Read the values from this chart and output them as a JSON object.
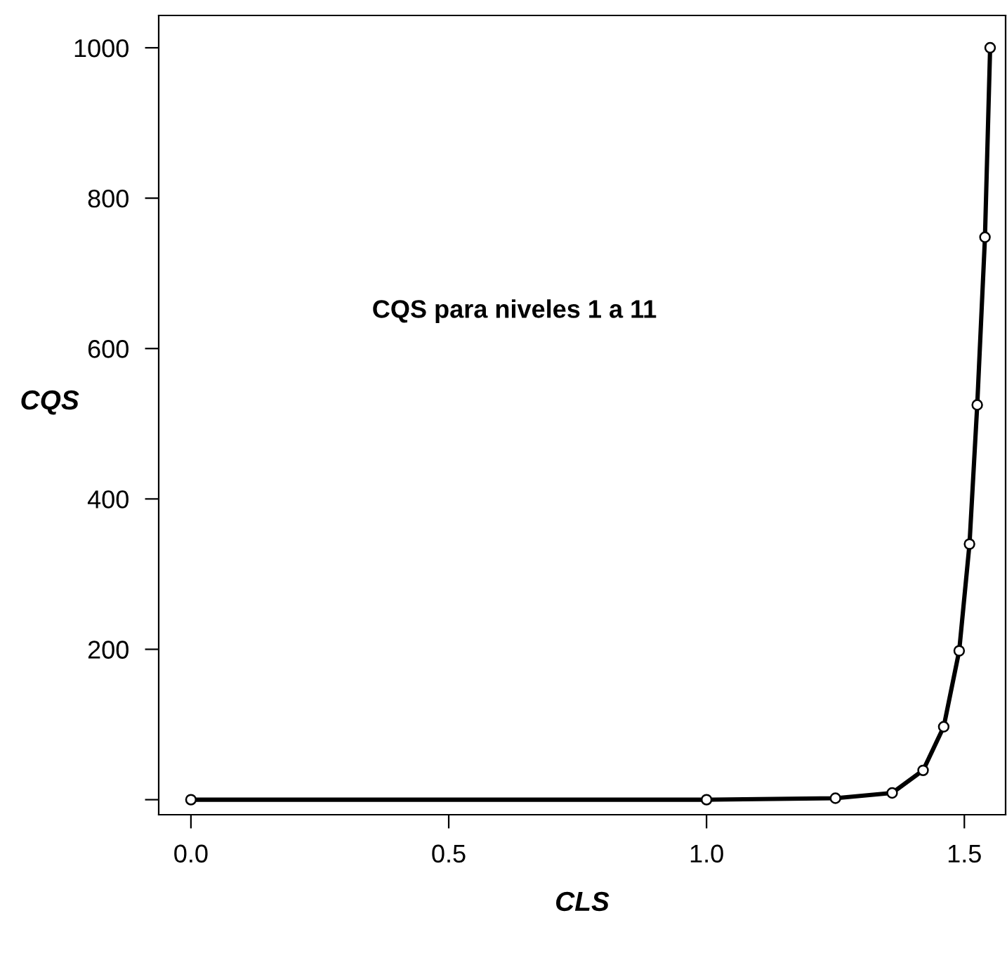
{
  "chart_data": {
    "type": "line",
    "xlabel": "CLS",
    "ylabel": "CQS",
    "annotations": [
      "CQS para niveles 1 a 11"
    ],
    "x": [
      0,
      1.0,
      1.25,
      1.36,
      1.42,
      1.46,
      1.49,
      1.51,
      1.525,
      1.54,
      1.55
    ],
    "series": [
      {
        "color": "#000000",
        "values": [
          0,
          0,
          2,
          9,
          39,
          97,
          198,
          340,
          525,
          748,
          1000
        ]
      }
    ],
    "xlim": [
      -0.0625,
      1.58
    ],
    "ylim": [
      -20,
      1043
    ],
    "xticks": [
      {
        "value": 0,
        "label": "0.0"
      },
      0.5,
      {
        "value": 1,
        "label": "1.0"
      },
      1.5
    ],
    "yticks": [
      {
        "value": 0,
        "label": null
      },
      200,
      400,
      600,
      800,
      1000
    ],
    "grid": false,
    "legend": false,
    "marker": "circle",
    "line_style": "solid"
  }
}
